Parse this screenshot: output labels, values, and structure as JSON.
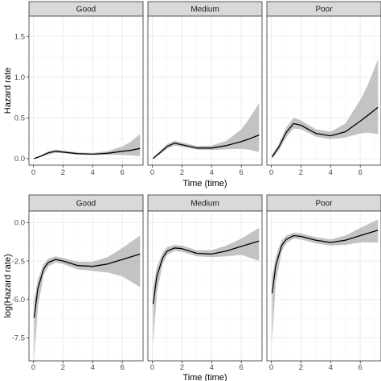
{
  "chart_data": [
    {
      "type": "line",
      "subtype": "faceted-line-with-ribbon",
      "facets": [
        "Good",
        "Medium",
        "Poor"
      ],
      "xlabel": "Time (time)",
      "ylabel": "Hazard rate",
      "xlim": [
        -0.3,
        7.4
      ],
      "ylim": [
        -0.08,
        1.75
      ],
      "x_ticks": [
        0,
        2,
        4,
        6
      ],
      "x_tick_labels": [
        "0",
        "2",
        "4",
        "6"
      ],
      "y_ticks": [
        0,
        0.5,
        1,
        1.5
      ],
      "y_tick_labels": [
        "0.0",
        "0.5",
        "1.0",
        "1.5"
      ],
      "grid": true,
      "colors": {
        "line": "#000000",
        "ribbon": "#bdbdbd",
        "strip_fill": "#d9d9d9",
        "grid": "#ebebeb"
      },
      "series": [
        {
          "facet": "Good",
          "x": [
            0.05,
            0.5,
            1.0,
            1.5,
            2.0,
            3.0,
            4.0,
            5.0,
            6.0,
            6.5,
            7.2
          ],
          "y": [
            0.0,
            0.03,
            0.07,
            0.09,
            0.08,
            0.06,
            0.055,
            0.065,
            0.09,
            0.1,
            0.125
          ],
          "lower": [
            0.0,
            0.02,
            0.05,
            0.07,
            0.065,
            0.05,
            0.045,
            0.045,
            0.045,
            0.04,
            0.03
          ],
          "upper": [
            0.01,
            0.04,
            0.09,
            0.11,
            0.1,
            0.075,
            0.07,
            0.09,
            0.15,
            0.2,
            0.3
          ]
        },
        {
          "facet": "Medium",
          "x": [
            0.05,
            0.5,
            1.0,
            1.5,
            2.0,
            3.0,
            4.0,
            5.0,
            6.0,
            6.5,
            7.2
          ],
          "y": [
            0.0,
            0.07,
            0.15,
            0.19,
            0.17,
            0.13,
            0.13,
            0.16,
            0.21,
            0.24,
            0.29
          ],
          "lower": [
            0.0,
            0.05,
            0.12,
            0.16,
            0.145,
            0.11,
            0.105,
            0.115,
            0.12,
            0.11,
            0.08
          ],
          "upper": [
            0.02,
            0.09,
            0.18,
            0.22,
            0.2,
            0.155,
            0.16,
            0.22,
            0.36,
            0.48,
            0.68
          ]
        },
        {
          "facet": "Poor",
          "x": [
            0.05,
            0.5,
            1.0,
            1.5,
            2.0,
            3.0,
            4.0,
            5.0,
            6.0,
            6.5,
            7.2
          ],
          "y": [
            0.02,
            0.14,
            0.32,
            0.43,
            0.41,
            0.31,
            0.28,
            0.33,
            0.46,
            0.53,
            0.63
          ],
          "lower": [
            0.0,
            0.1,
            0.26,
            0.37,
            0.36,
            0.27,
            0.24,
            0.26,
            0.31,
            0.32,
            0.3
          ],
          "upper": [
            0.05,
            0.18,
            0.38,
            0.5,
            0.47,
            0.36,
            0.33,
            0.43,
            0.72,
            0.9,
            1.22
          ]
        }
      ]
    },
    {
      "type": "line",
      "subtype": "faceted-line-with-ribbon",
      "facets": [
        "Good",
        "Medium",
        "Poor"
      ],
      "xlabel": "Time (time)",
      "ylabel": "log(Hazard rate)",
      "xlim": [
        -0.3,
        7.4
      ],
      "ylim": [
        -9.0,
        0.75
      ],
      "x_ticks": [
        0,
        2,
        4,
        6
      ],
      "x_tick_labels": [
        "0",
        "2",
        "4",
        "6"
      ],
      "y_ticks": [
        0,
        -2.5,
        -5,
        -7.5
      ],
      "y_tick_labels": [
        "0.0",
        "-2.5",
        "-5.0",
        "-7.5"
      ],
      "grid": true,
      "colors": {
        "line": "#000000",
        "ribbon": "#bdbdbd",
        "strip_fill": "#d9d9d9",
        "grid": "#ebebeb"
      },
      "series": [
        {
          "facet": "Good",
          "x": [
            0.05,
            0.3,
            0.7,
            1.0,
            1.5,
            2.0,
            3.0,
            4.0,
            5.0,
            6.0,
            7.2
          ],
          "y": [
            -6.2,
            -4.3,
            -3.0,
            -2.6,
            -2.4,
            -2.5,
            -2.8,
            -2.85,
            -2.7,
            -2.4,
            -2.05
          ],
          "lower": [
            -9.0,
            -5.5,
            -3.4,
            -2.85,
            -2.6,
            -2.7,
            -3.05,
            -3.15,
            -3.25,
            -3.5,
            -4.2
          ],
          "upper": [
            -5.0,
            -3.7,
            -2.7,
            -2.35,
            -2.2,
            -2.3,
            -2.55,
            -2.55,
            -2.25,
            -1.65,
            -0.85
          ]
        },
        {
          "facet": "Medium",
          "x": [
            0.05,
            0.3,
            0.7,
            1.0,
            1.5,
            2.0,
            3.0,
            4.0,
            5.0,
            6.0,
            7.2
          ],
          "y": [
            -5.3,
            -3.5,
            -2.3,
            -1.85,
            -1.65,
            -1.7,
            -2.0,
            -2.05,
            -1.85,
            -1.55,
            -1.2
          ],
          "lower": [
            -8.0,
            -4.6,
            -2.7,
            -2.1,
            -1.85,
            -1.9,
            -2.2,
            -2.25,
            -2.2,
            -2.1,
            -2.5
          ],
          "upper": [
            -4.2,
            -2.9,
            -1.95,
            -1.6,
            -1.45,
            -1.5,
            -1.8,
            -1.8,
            -1.5,
            -1.05,
            -0.35
          ]
        },
        {
          "facet": "Poor",
          "x": [
            0.05,
            0.3,
            0.7,
            1.0,
            1.5,
            2.0,
            3.0,
            4.0,
            5.0,
            6.0,
            7.2
          ],
          "y": [
            -4.6,
            -2.8,
            -1.5,
            -1.1,
            -0.85,
            -0.9,
            -1.15,
            -1.3,
            -1.15,
            -0.85,
            -0.5
          ],
          "lower": [
            -7.8,
            -3.9,
            -1.9,
            -1.35,
            -1.05,
            -1.1,
            -1.35,
            -1.5,
            -1.45,
            -1.3,
            -1.3
          ],
          "upper": [
            -3.5,
            -2.2,
            -1.15,
            -0.85,
            -0.65,
            -0.7,
            -0.95,
            -1.1,
            -0.85,
            -0.35,
            0.2
          ]
        }
      ]
    }
  ]
}
